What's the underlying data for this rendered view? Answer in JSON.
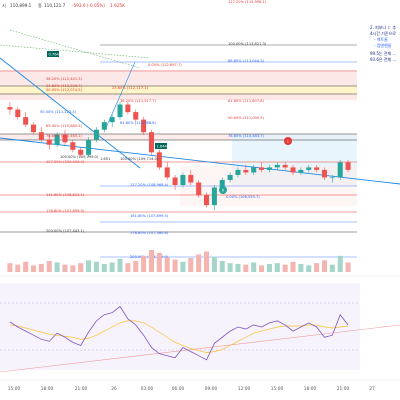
{
  "header": {
    "pair_prefix": "시",
    "price_text": "110,899.1",
    "close_label": "종",
    "close_value": "110,121.7",
    "change_text": "-593.6 (-0.05%)",
    "volume_text": "1.925K"
  },
  "notes": {
    "line1": "2. 피보나 ㄷ 추",
    "line2": "4시간 기준으로",
    "line3": "- 액트롬",
    "line4": "- 컵앤핸들",
    "line5": "99.5는 전체 ...",
    "line6": "93.6은 전체 ..."
  },
  "fib_labels": [
    {
      "text": "127.20% (115,998.1)",
      "color": "#e53935"
    },
    {
      "text": "100.00% (113,621.3)",
      "color": "#333333"
    },
    {
      "text": "88.60% (113,044.3)",
      "color": "#2962ff"
    },
    {
      "text": "0.00% (112,897.7)",
      "color": "#e53935"
    },
    {
      "text": "38.20% (112,441.3)",
      "color": "#e53935"
    },
    {
      "text": "23.60% (112,226.7)",
      "color": "#e53935"
    },
    {
      "text": "50.00% (112,074.5)",
      "color": "#e53935"
    },
    {
      "text": "23.60% (112,117.1)",
      "color": "#e53935"
    },
    {
      "text": "61.80% (111,607.8)",
      "color": "#e53935"
    },
    {
      "text": "38.20% (111,517.7)",
      "color": "#e53935"
    },
    {
      "text": "50.00% (111,223.3)",
      "color": "#2962ff"
    },
    {
      "text": "50.00% (111,090.5)",
      "color": "#e53935"
    },
    {
      "text": "65.40% (110,880.5)",
      "color": "#e53935"
    },
    {
      "text": "61.80% (110,968.6)",
      "color": "#2962ff"
    },
    {
      "text": "78.60% (110,465.1)",
      "color": "#e53935"
    },
    {
      "text": "78.60% (110,483.7)",
      "color": "#2962ff"
    },
    {
      "text": "127.20% (109,453.4)",
      "color": "#e53935"
    },
    {
      "text": "100.00% (109,714.0)",
      "color": "#333333"
    },
    {
      "text": "100.00% (109,799.0)",
      "color": "#333333"
    },
    {
      "text": "127.20% (108,968.4)",
      "color": "#2962ff"
    },
    {
      "text": "141.80% (108,623.1)",
      "color": "#e53935"
    },
    {
      "text": "0.00% (108,559.7)",
      "color": "#2962ff"
    },
    {
      "text": "178.60% (107,899.9)",
      "color": "#e53935"
    },
    {
      "text": "161.80% (107,899.5)",
      "color": "#2962ff"
    },
    {
      "text": "200.00% (107,443.1)",
      "color": "#333333"
    },
    {
      "text": "178.60% (107,380.6)",
      "color": "#2962ff"
    },
    {
      "text": "200.00% (106,719.9)",
      "color": "#2962ff"
    }
  ],
  "price_badges": {
    "left_badge": "0.764",
    "right_badge": "1.644",
    "mid_badge": "1.651"
  },
  "markers": {
    "top": "1",
    "bottom": "0"
  },
  "time_axis": [
    "15:00",
    "18:00",
    "21:00",
    "26",
    "03:00",
    "06:00",
    "09:00",
    "12:00",
    "15:00",
    "18:00",
    "21:00",
    "27"
  ],
  "chart_data": {
    "type": "candlestick",
    "series": [
      {
        "name": "price",
        "values": [
          [
            112.7,
            112.9,
            112.4,
            112.6
          ],
          [
            112.6,
            112.7,
            112.2,
            112.3
          ],
          [
            112.3,
            112.5,
            111.9,
            112.0
          ],
          [
            112.0,
            112.1,
            111.6,
            111.7
          ],
          [
            111.7,
            111.9,
            111.3,
            111.4
          ],
          [
            111.4,
            111.6,
            111.0,
            111.2
          ],
          [
            111.2,
            111.7,
            111.1,
            111.6
          ],
          [
            111.6,
            111.8,
            111.2,
            111.3
          ],
          [
            111.3,
            111.4,
            110.9,
            111.0
          ],
          [
            111.0,
            111.1,
            110.7,
            110.8
          ],
          [
            110.8,
            111.5,
            110.7,
            111.4
          ],
          [
            111.4,
            111.9,
            111.3,
            111.8
          ],
          [
            111.8,
            112.2,
            111.7,
            112.1
          ],
          [
            112.1,
            112.4,
            111.9,
            112.3
          ],
          [
            112.3,
            112.9,
            112.2,
            112.8
          ],
          [
            112.8,
            112.9,
            112.4,
            112.5
          ],
          [
            112.5,
            112.6,
            112.1,
            112.2
          ],
          [
            112.2,
            112.3,
            111.6,
            111.7
          ],
          [
            111.7,
            111.8,
            110.8,
            110.9
          ],
          [
            110.9,
            111.0,
            110.2,
            110.3
          ],
          [
            110.3,
            110.5,
            109.8,
            109.9
          ],
          [
            109.9,
            110.0,
            109.4,
            109.6
          ],
          [
            109.6,
            110.1,
            109.5,
            110.0
          ],
          [
            110.0,
            110.2,
            109.6,
            109.7
          ],
          [
            109.7,
            109.8,
            109.1,
            109.2
          ],
          [
            109.2,
            109.3,
            108.7,
            108.8
          ],
          [
            108.8,
            109.6,
            108.6,
            109.5
          ],
          [
            109.5,
            109.9,
            109.4,
            109.8
          ],
          [
            109.8,
            110.1,
            109.7,
            110.0
          ],
          [
            110.0,
            110.3,
            109.9,
            110.2
          ],
          [
            110.2,
            110.4,
            110.0,
            110.1
          ],
          [
            110.1,
            110.4,
            110.0,
            110.3
          ],
          [
            110.3,
            110.5,
            110.1,
            110.2
          ],
          [
            110.2,
            110.4,
            110.1,
            110.3
          ],
          [
            110.3,
            110.5,
            110.2,
            110.4
          ],
          [
            110.4,
            110.5,
            110.2,
            110.3
          ],
          [
            110.3,
            110.4,
            110.0,
            110.1
          ],
          [
            110.1,
            110.3,
            110.0,
            110.2
          ],
          [
            110.2,
            110.4,
            110.1,
            110.3
          ],
          [
            110.3,
            110.4,
            110.1,
            110.2
          ],
          [
            110.2,
            110.3,
            109.8,
            109.9
          ],
          [
            109.9,
            110.0,
            109.7,
            109.9
          ],
          [
            109.9,
            110.6,
            109.8,
            110.5
          ],
          [
            110.5,
            110.6,
            110.1,
            110.2
          ]
        ]
      }
    ],
    "volume": [
      12,
      10,
      14,
      9,
      11,
      15,
      13,
      10,
      9,
      12,
      16,
      14,
      11,
      13,
      18,
      12,
      15,
      22,
      30,
      26,
      20,
      17,
      14,
      19,
      24,
      28,
      21,
      15,
      12,
      11,
      10,
      13,
      9,
      11,
      12,
      10,
      14,
      11,
      9,
      12,
      16,
      10,
      22,
      13
    ],
    "rsi": [
      55,
      50,
      46,
      42,
      38,
      36,
      44,
      40,
      35,
      32,
      45,
      56,
      62,
      64,
      70,
      58,
      52,
      42,
      30,
      24,
      22,
      20,
      30,
      26,
      22,
      18,
      34,
      40,
      46,
      50,
      48,
      52,
      50,
      54,
      56,
      52,
      46,
      50,
      54,
      50,
      40,
      42,
      62,
      52
    ],
    "rsi_ma": [
      52,
      51,
      49,
      47,
      45,
      43,
      42,
      41,
      40,
      38,
      39,
      42,
      46,
      50,
      54,
      56,
      56,
      54,
      50,
      45,
      40,
      35,
      32,
      29,
      27,
      25,
      26,
      28,
      32,
      36,
      40,
      44,
      46,
      48,
      50,
      51,
      51,
      51,
      52,
      52,
      50,
      49,
      50,
      51
    ],
    "price_range": [
      106.3,
      116.4
    ],
    "grid": false,
    "legend": "none"
  },
  "colors": {
    "up": "#26a69a",
    "down": "#ef5350",
    "fib_red": "#e53935",
    "fib_blue": "#2962ff",
    "rsi_line": "#7e57c2",
    "rsi_ma": "#fbc02d"
  }
}
